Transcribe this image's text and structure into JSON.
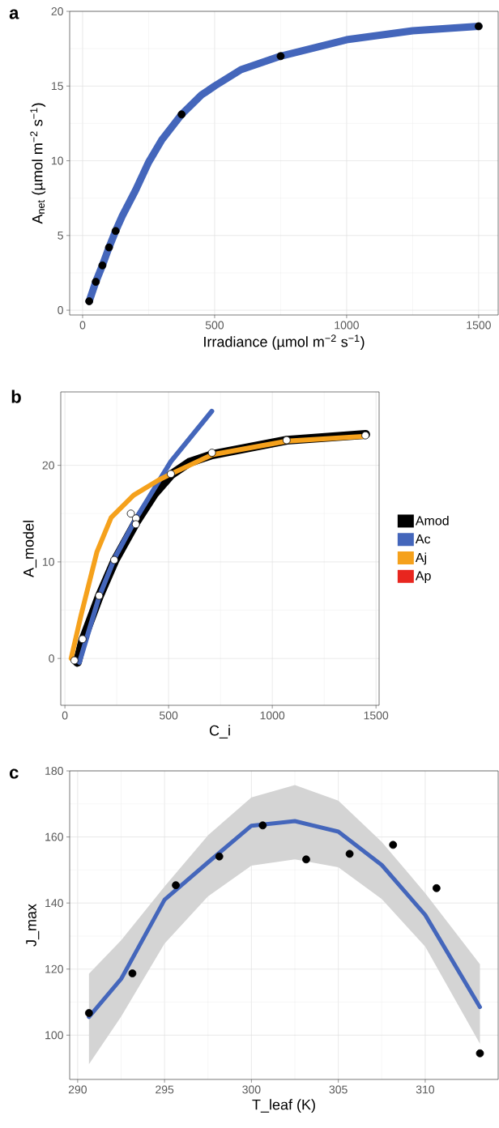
{
  "chart_data": [
    {
      "type": "line",
      "title": "a",
      "xlabel": "Irradiance (µmol m$^{−2}$ s$^{−1}$)",
      "ylabel": "A$_{net}$ (µmol m$^{−2}$ s$^{−1}$)",
      "xlim": [
        -49,
        1574
      ],
      "ylim": [
        -0.32,
        20
      ],
      "xticks": [
        0,
        500,
        1000,
        1500
      ],
      "yticks": [
        0,
        5,
        10,
        15,
        20
      ],
      "grid": true,
      "series": [
        {
          "marker": "none",
          "color": "#4466bb",
          "x": [
            25,
            50,
            75,
            100,
            125,
            150,
            200,
            250,
            300,
            375,
            450,
            500,
            600,
            750,
            1000,
            1250,
            1500
          ],
          "values": [
            0.6,
            1.9,
            3.0,
            4.2,
            5.3,
            6.3,
            8.0,
            9.9,
            11.4,
            13.1,
            14.4,
            15.0,
            16.1,
            17.0,
            18.1,
            18.7,
            19.0
          ]
        },
        {
          "type": "scatter",
          "marker": "circle",
          "color": "#000000",
          "x": [
            25,
            50,
            75,
            100,
            125,
            375,
            750,
            1500
          ],
          "values": [
            0.6,
            1.9,
            3.0,
            4.2,
            5.3,
            13.1,
            17.0,
            19.0
          ]
        }
      ]
    },
    {
      "type": "line",
      "title": "b",
      "xlabel": "C_i",
      "ylabel": "A_model",
      "xlim": [
        -20,
        1515
      ],
      "ylim": [
        -4.85,
        27.6
      ],
      "xticks": [
        0,
        500,
        1000,
        1500
      ],
      "yticks": [
        0,
        10,
        20
      ],
      "grid": true,
      "legend": "right",
      "series": [
        {
          "marker": "none",
          "name": "Amod",
          "color": "#000000",
          "x": [
            60,
            85,
            165,
            240,
            343,
            430,
            511,
            600,
            710,
            1070,
            1450
          ],
          "values": [
            -0.4,
            1.8,
            6.4,
            10.1,
            14.1,
            17.0,
            19.0,
            20.3,
            21.1,
            22.6,
            23.2
          ]
        },
        {
          "marker": "none",
          "name": "Ac",
          "color": "#4466bb",
          "x": [
            70,
            165,
            240,
            343,
            511,
            708
          ],
          "values": [
            -0.4,
            6.4,
            10.4,
            14.5,
            20.4,
            25.6
          ]
        },
        {
          "marker": "none",
          "name": "Aj",
          "color": "#f5a11c",
          "x": [
            30,
            77,
            154,
            223,
            331,
            454,
            511,
            710,
            1070,
            1450
          ],
          "values": [
            0,
            4.4,
            11.0,
            14.6,
            16.9,
            18.5,
            19.1,
            21.1,
            22.5,
            23.0
          ]
        },
        {
          "name": "Ap",
          "color": "#e8261f"
        },
        {
          "type": "scatter",
          "marker": "circle",
          "color": "#ffffff",
          "x": [
            46,
            85,
            165,
            238,
            318,
            343,
            342,
            511,
            709,
            1069,
            1449
          ],
          "values": [
            -0.2,
            2.0,
            6.5,
            10.2,
            15.0,
            14.5,
            13.9,
            19.1,
            21.3,
            22.6,
            23.1
          ]
        }
      ]
    },
    {
      "type": "line",
      "title": "c",
      "xlabel": "T_leaf (K)",
      "ylabel": "J_max",
      "xlim": [
        289.54,
        314.2
      ],
      "ylim": [
        86.6,
        180
      ],
      "xticks": [
        290,
        295,
        300,
        305,
        310
      ],
      "yticks": [
        100,
        120,
        140,
        160,
        180
      ],
      "grid": true,
      "series": [
        {
          "marker": "none",
          "color": "#4466bb",
          "x": [
            290.65,
            292.5,
            295,
            297.5,
            300,
            302.5,
            305,
            307.5,
            310,
            313.15
          ],
          "values": [
            105.5,
            117.0,
            141.0,
            152.3,
            163.4,
            164.8,
            161.6,
            151.5,
            136.4,
            108.5
          ],
          "lower": [
            91.2,
            105.6,
            127.7,
            142.0,
            151.3,
            153.2,
            150.8,
            141.2,
            126.8,
            97.4
          ],
          "upper": [
            118.6,
            128.7,
            145.0,
            160.5,
            172.0,
            175.7,
            171.0,
            158.5,
            143.0,
            121.5
          ]
        },
        {
          "type": "scatter",
          "marker": "circle",
          "color": "#000000",
          "x": [
            290.65,
            293.15,
            295.65,
            298.15,
            300.65,
            303.15,
            305.65,
            308.15,
            310.65,
            313.15
          ],
          "values": [
            106.7,
            118.7,
            145.4,
            154.1,
            163.5,
            153.2,
            154.9,
            157.6,
            144.5,
            94.5
          ]
        }
      ]
    }
  ]
}
